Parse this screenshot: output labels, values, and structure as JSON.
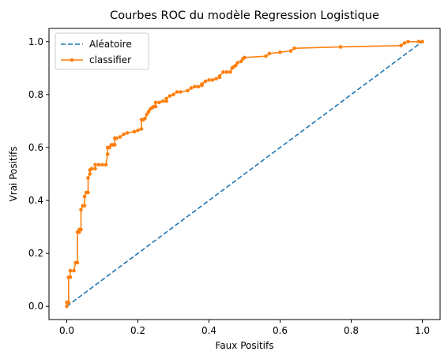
{
  "chart_data": {
    "type": "line",
    "title": "Courbes ROC du modèle Regression Logistique",
    "xlabel": "Faux Positifs",
    "ylabel": "Vrai Positifs",
    "xlim": [
      -0.05,
      1.05
    ],
    "ylim": [
      -0.05,
      1.05
    ],
    "xticks": [
      0.0,
      0.2,
      0.4,
      0.6,
      0.8,
      1.0
    ],
    "yticks": [
      0.0,
      0.2,
      0.4,
      0.6,
      0.8,
      1.0
    ],
    "tick_labels_x": [
      "0.0",
      "0.2",
      "0.4",
      "0.6",
      "0.8",
      "1.0"
    ],
    "tick_labels_y": [
      "0.0",
      "0.2",
      "0.4",
      "0.6",
      "0.8",
      "1.0"
    ],
    "grid": false,
    "legend_position": "upper-left",
    "series": [
      {
        "name": "Aléatoire",
        "style": "dashed",
        "color": "#1f77b4",
        "x": [
          0,
          1
        ],
        "y": [
          0,
          1
        ]
      },
      {
        "name": "classifier",
        "style": "solid-markers",
        "color": "#ff7f0e",
        "x": [
          0,
          0,
          0.005,
          0.005,
          0.01,
          0.01,
          0.02,
          0.025,
          0.03,
          0.03,
          0.035,
          0.035,
          0.04,
          0.04,
          0.045,
          0.05,
          0.05,
          0.055,
          0.06,
          0.06,
          0.065,
          0.065,
          0.07,
          0.08,
          0.08,
          0.09,
          0.1,
          0.11,
          0.115,
          0.115,
          0.12,
          0.125,
          0.13,
          0.135,
          0.135,
          0.14,
          0.15,
          0.16,
          0.17,
          0.19,
          0.2,
          0.21,
          0.21,
          0.215,
          0.22,
          0.225,
          0.23,
          0.235,
          0.24,
          0.245,
          0.25,
          0.25,
          0.26,
          0.27,
          0.28,
          0.28,
          0.29,
          0.3,
          0.31,
          0.32,
          0.34,
          0.35,
          0.36,
          0.37,
          0.38,
          0.38,
          0.39,
          0.4,
          0.41,
          0.42,
          0.43,
          0.43,
          0.44,
          0.45,
          0.46,
          0.465,
          0.47,
          0.475,
          0.48,
          0.49,
          0.495,
          0.5,
          0.56,
          0.57,
          0.6,
          0.63,
          0.64,
          0.77,
          0.94,
          0.95,
          0.96,
          0.99,
          1.0
        ],
        "y": [
          0,
          0.015,
          0.015,
          0.11,
          0.11,
          0.135,
          0.135,
          0.165,
          0.165,
          0.28,
          0.28,
          0.29,
          0.29,
          0.365,
          0.38,
          0.38,
          0.415,
          0.43,
          0.43,
          0.485,
          0.5,
          0.515,
          0.52,
          0.52,
          0.535,
          0.535,
          0.535,
          0.535,
          0.575,
          0.6,
          0.6,
          0.61,
          0.61,
          0.61,
          0.635,
          0.635,
          0.64,
          0.65,
          0.655,
          0.66,
          0.665,
          0.67,
          0.705,
          0.705,
          0.71,
          0.725,
          0.735,
          0.745,
          0.75,
          0.755,
          0.755,
          0.77,
          0.77,
          0.775,
          0.775,
          0.785,
          0.795,
          0.8,
          0.81,
          0.81,
          0.815,
          0.825,
          0.83,
          0.83,
          0.835,
          0.84,
          0.85,
          0.855,
          0.855,
          0.86,
          0.865,
          0.87,
          0.885,
          0.885,
          0.885,
          0.9,
          0.905,
          0.91,
          0.92,
          0.925,
          0.935,
          0.94,
          0.945,
          0.955,
          0.96,
          0.965,
          0.975,
          0.98,
          0.985,
          0.995,
          1.0,
          1.0,
          1.0
        ]
      }
    ]
  }
}
